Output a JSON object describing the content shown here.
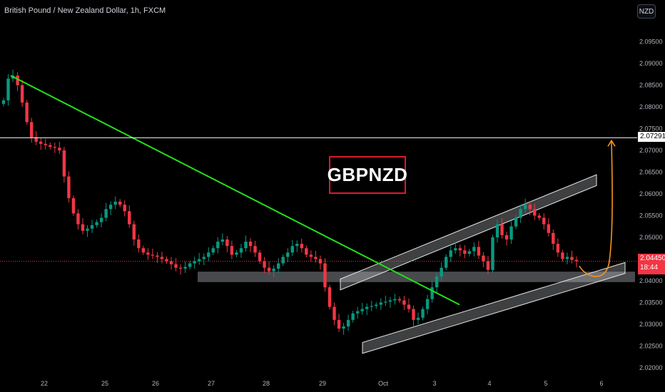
{
  "header": {
    "title": "British Pound / New Zealand Dollar, 1h, FXCM",
    "currency_button": "NZD"
  },
  "banner": {
    "text": "GBPNZD"
  },
  "price_tags": {
    "current_price": "2.04450",
    "countdown": "18:44",
    "horizontal_level": "2.07291"
  },
  "colors": {
    "background": "#000000",
    "candle_up": "#089981",
    "candle_down": "#f23645",
    "trendline": "#22e01a",
    "projection_arrow": "#f7931e",
    "zone_fill": "#d1d4dc",
    "banner_border": "#e0182a"
  },
  "chart_data": {
    "type": "candlestick",
    "title": "British Pound / New Zealand Dollar, 1h, FXCM",
    "symbol": "GBPNZD",
    "timeframe": "1h",
    "y_axis": {
      "ticks": [
        "2.02000",
        "2.02500",
        "2.03000",
        "2.03500",
        "2.04000",
        "2.04500",
        "2.05000",
        "2.05500",
        "2.06000",
        "2.06500",
        "2.07000",
        "2.07500",
        "2.08000",
        "2.08500",
        "2.09000",
        "2.09500"
      ],
      "range": [
        2.0195,
        2.1
      ]
    },
    "x_axis": {
      "labels": [
        "22",
        "25",
        "26",
        "27",
        "28",
        "29",
        "Oct",
        "3",
        "4",
        "5",
        "6"
      ]
    },
    "series_closes_approx": [
      2.0815,
      2.0865,
      2.0872,
      2.085,
      2.081,
      2.0765,
      2.073,
      2.072,
      2.0715,
      2.0712,
      2.0708,
      2.0706,
      2.07,
      2.064,
      2.059,
      2.0555,
      2.053,
      2.0515,
      2.052,
      2.0528,
      2.0535,
      2.0545,
      2.0565,
      2.0575,
      2.0582,
      2.0575,
      2.056,
      2.053,
      2.0495,
      2.0475,
      2.0465,
      2.046,
      2.0458,
      2.0455,
      2.045,
      2.0445,
      2.0438,
      2.043,
      2.0428,
      2.0432,
      2.044,
      2.0445,
      2.045,
      2.0455,
      2.0465,
      2.0475,
      2.049,
      2.0495,
      2.048,
      2.046,
      2.0465,
      2.0475,
      2.049,
      2.048,
      2.0465,
      2.0445,
      2.043,
      2.0422,
      2.0428,
      2.044,
      2.0455,
      2.0465,
      2.048,
      2.0485,
      2.0475,
      2.046,
      2.0455,
      2.045,
      2.044,
      2.0385,
      2.034,
      2.031,
      2.029,
      2.0295,
      2.031,
      2.0325,
      2.033,
      2.0335,
      2.034,
      2.0342,
      2.0345,
      2.035,
      2.0352,
      2.0355,
      2.0358,
      2.0355,
      2.0345,
      2.0335,
      2.031,
      2.0315,
      2.0335,
      2.0358,
      2.0385,
      2.041,
      2.043,
      2.0455,
      2.047,
      2.0475,
      2.047,
      2.0462,
      2.0468,
      2.0478,
      2.0458,
      2.0445,
      2.0425,
      2.05,
      2.053,
      2.0505,
      2.0495,
      2.0525,
      2.0545,
      2.0565,
      2.0575,
      2.0565,
      2.055,
      2.0545,
      2.053,
      2.051,
      2.0485,
      2.0465,
      2.045,
      2.0455,
      2.0448,
      2.0445
    ],
    "annotations": [
      {
        "type": "trendline",
        "from": {
          "x": "21",
          "y": 2.0872
        },
        "to": {
          "x": "2",
          "y": 2.0345
        }
      },
      {
        "type": "horizontal_line",
        "y": 2.07291
      },
      {
        "type": "support_zone",
        "y_range": [
          2.0397,
          2.0421
        ]
      },
      {
        "type": "ascending_channel_upper",
        "from_y": [
          2.0379,
          2.0404
        ],
        "to_y": [
          2.0619,
          2.0644
        ]
      },
      {
        "type": "ascending_channel_lower",
        "from_y": [
          2.0233,
          2.0258
        ],
        "to_y": [
          2.0417,
          2.0442
        ]
      },
      {
        "type": "projection_arrow",
        "from_y": 2.0435,
        "to_y": 2.0729
      }
    ]
  }
}
